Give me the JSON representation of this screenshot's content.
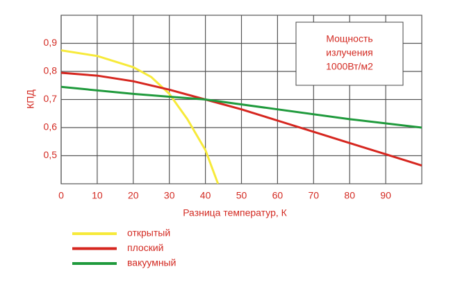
{
  "chart_data": {
    "type": "line",
    "xlabel": "Разница температур, К",
    "ylabel": "КПД",
    "annotation": [
      "Мощность",
      "излучения",
      "1000Вт/м2"
    ],
    "xlim": [
      0,
      100
    ],
    "xticks": [
      0,
      10,
      20,
      30,
      40,
      50,
      60,
      70,
      80,
      90
    ],
    "ylim": [
      0.4,
      1.0
    ],
    "yticks": [
      {
        "value": 0.5,
        "label": "0,5"
      },
      {
        "value": 0.6,
        "label": "0,6"
      },
      {
        "value": 0.7,
        "label": "0,7"
      },
      {
        "value": 0.8,
        "label": "0,8"
      },
      {
        "value": 0.9,
        "label": "0,9"
      }
    ],
    "grid": true,
    "series": [
      {
        "name": "открытый",
        "color": "#f7ea3a",
        "x": [
          0,
          10,
          20,
          25,
          30,
          35,
          40,
          43.5
        ],
        "values": [
          0.875,
          0.855,
          0.815,
          0.78,
          0.72,
          0.63,
          0.52,
          0.4
        ]
      },
      {
        "name": "плоский",
        "color": "#d6261f",
        "x": [
          0,
          10,
          20,
          30,
          40,
          50,
          60,
          70,
          80,
          90,
          100
        ],
        "values": [
          0.795,
          0.785,
          0.765,
          0.735,
          0.7,
          0.665,
          0.625,
          0.585,
          0.545,
          0.505,
          0.465
        ]
      },
      {
        "name": "вакуумный",
        "color": "#1f9a3c",
        "x": [
          0,
          20,
          40,
          60,
          80,
          100
        ],
        "values": [
          0.745,
          0.72,
          0.7,
          0.665,
          0.63,
          0.6
        ]
      }
    ]
  }
}
